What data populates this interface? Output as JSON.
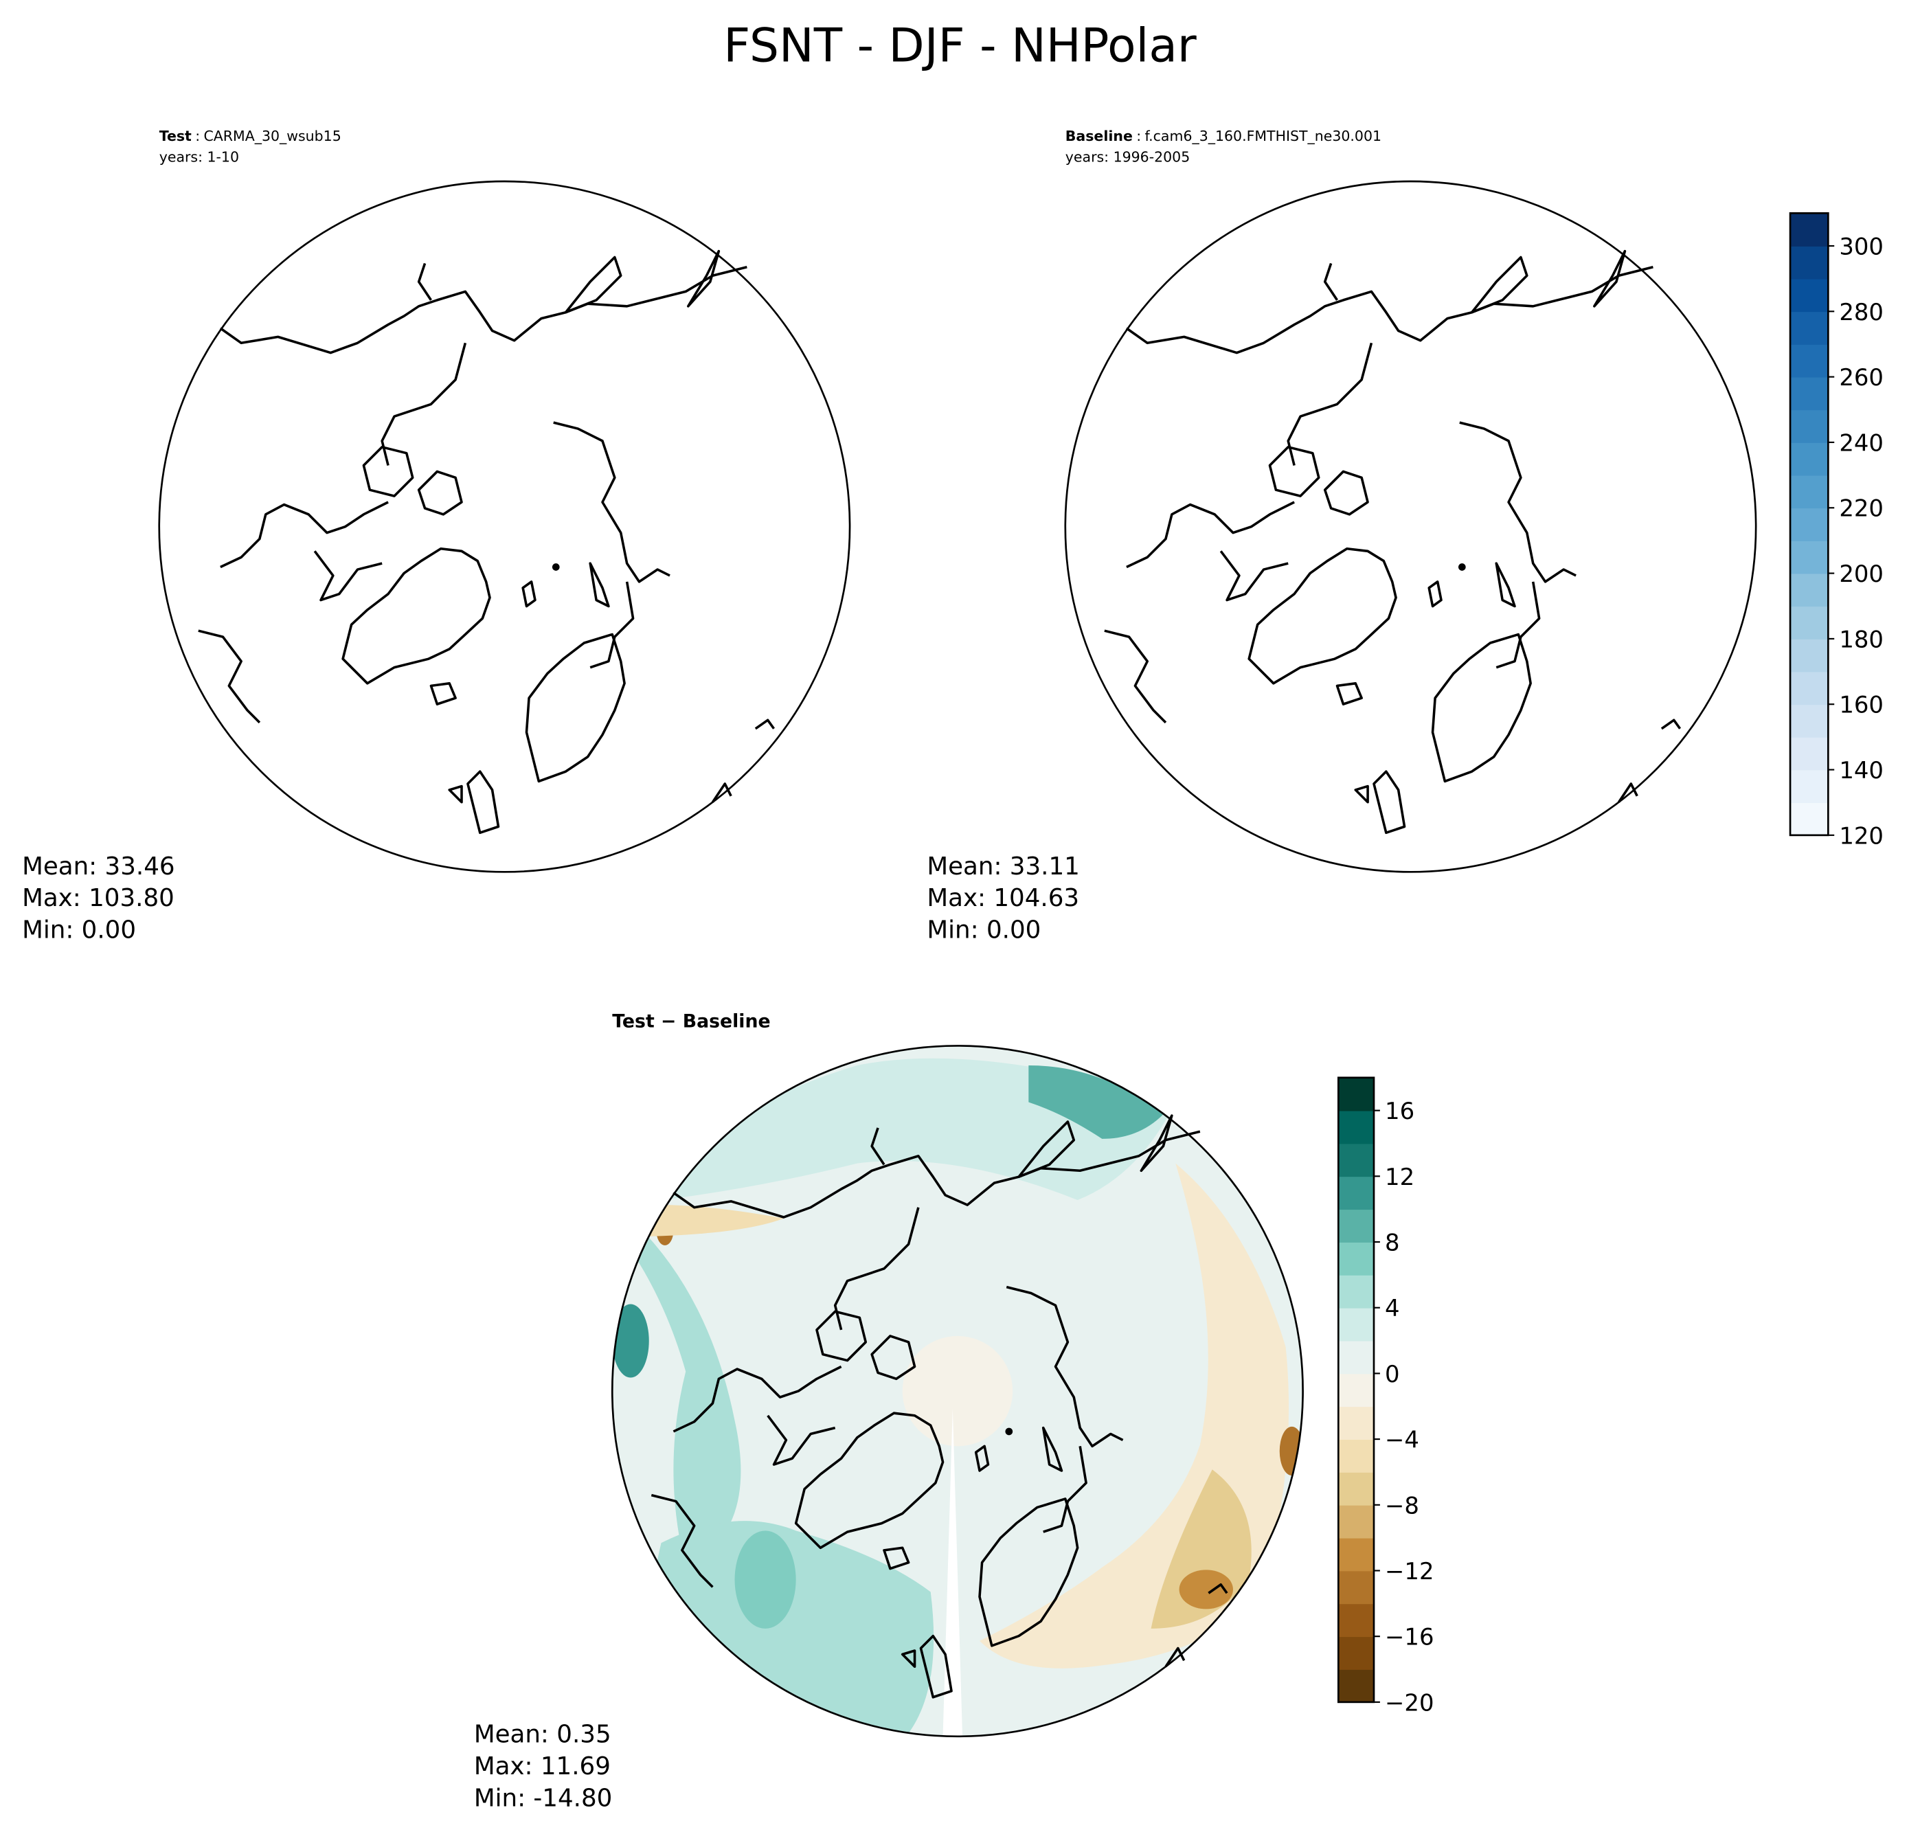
{
  "title": "FSNT - DJF - NHPolar",
  "panels": [
    {
      "label": "Test",
      "case": "CARMA_30_wsub15",
      "years": "years: 1-10",
      "stats": {
        "mean": "Mean: 33.46",
        "max": "Max: 103.80",
        "min": "Min:  0.00"
      }
    },
    {
      "label": "Baseline",
      "case": "f.cam6_3_160.FMTHIST_ne30.001",
      "years": "years: 1996-2005",
      "stats": {
        "mean": "Mean: 33.11",
        "max": "Max: 104.63",
        "min": "Min:  0.00"
      }
    },
    {
      "label": "Test − Baseline",
      "stats": {
        "mean": "Mean:  0.35",
        "max": "Max: 11.69",
        "min": "Min: -14.80"
      }
    }
  ],
  "chart_data": [
    {
      "type": "heatmap",
      "projection": "north-polar-stereographic",
      "title": "Test : CARMA_30_wsub15",
      "mean": 33.46,
      "max": 103.8,
      "min": 0.0,
      "colormap": "Blues"
    },
    {
      "type": "heatmap",
      "projection": "north-polar-stereographic",
      "title": "Baseline : f.cam6_3_160.FMTHIST_ne30.001",
      "mean": 33.11,
      "max": 104.63,
      "min": 0.0,
      "colormap": "Blues"
    },
    {
      "type": "heatmap",
      "projection": "north-polar-stereographic",
      "title": "Test − Baseline",
      "mean": 0.35,
      "max": 11.69,
      "min": -14.8,
      "colormap": "BrBG"
    }
  ],
  "colorbar_main": {
    "range": [
      120,
      310
    ],
    "ticks": [
      "120",
      "140",
      "160",
      "180",
      "200",
      "220",
      "240",
      "260",
      "280",
      "300"
    ],
    "tick_values": [
      120,
      140,
      160,
      180,
      200,
      220,
      240,
      260,
      280,
      300
    ],
    "colors": [
      "#f2f8fd",
      "#e7f1fa",
      "#dde9f6",
      "#d0e2f2",
      "#c3dbee",
      "#b3d3e8",
      "#a0cbe2",
      "#8dc1dd",
      "#75b4d8",
      "#64a9d3",
      "#549fcd",
      "#4594c7",
      "#3787c0",
      "#2b7bba",
      "#1f6eb3",
      "#1561a9",
      "#08519c",
      "#08458a",
      "#08306b"
    ]
  },
  "colorbar_diff": {
    "range": [
      -20,
      18
    ],
    "ticks": [
      "−20",
      "−16",
      "−12",
      "−8",
      "−4",
      "0",
      "4",
      "8",
      "12",
      "16"
    ],
    "tick_values": [
      -20,
      -16,
      -12,
      -8,
      -4,
      0,
      4,
      8,
      12,
      16
    ],
    "colors": [
      "#5e3a0b",
      "#7f4a0e",
      "#975a17",
      "#b0742a",
      "#c68c3c",
      "#d7b06b",
      "#e5cd91",
      "#f2deb2",
      "#f6e9cf",
      "#f5f2e8",
      "#e8f2f0",
      "#d0ece8",
      "#abdfd7",
      "#80cdc1",
      "#5ab2a7",
      "#35978f",
      "#15786f",
      "#01665e",
      "#003c30"
    ]
  }
}
